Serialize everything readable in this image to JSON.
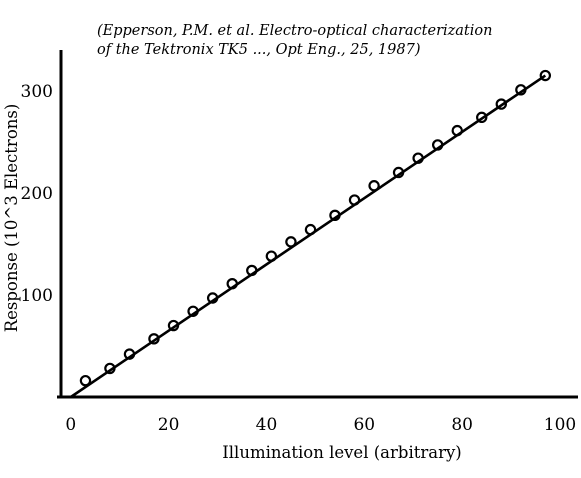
{
  "chart_data": {
    "type": "scatter",
    "annotation_lines": [
      "(Epperson, P.M. et al. Electro-optical characterization",
      "of the Tektronix TK5 ..., Opt Eng., 25, 1987)"
    ],
    "xlabel": "Illumination level (arbitrary)",
    "ylabel": "Response  (10^3 Electrons)",
    "xlim": [
      -2,
      100
    ],
    "ylim": [
      0,
      340
    ],
    "x_ticks": [
      0,
      20,
      40,
      60,
      80,
      100
    ],
    "y_ticks": [
      100,
      200,
      300
    ],
    "grid": false,
    "fit_line": {
      "x": [
        0,
        97
      ],
      "y": [
        0,
        315
      ]
    },
    "series": [
      {
        "x": [
          3,
          8,
          12,
          17,
          21,
          25,
          29,
          33,
          37,
          41,
          45,
          49,
          54,
          58,
          62,
          67,
          71,
          75,
          79,
          84,
          88,
          92,
          97
        ],
        "y": [
          16,
          28,
          42,
          57,
          70,
          84,
          97,
          111,
          124,
          138,
          152,
          164,
          178,
          193,
          207,
          220,
          234,
          247,
          261,
          274,
          287,
          301,
          315
        ]
      }
    ]
  }
}
